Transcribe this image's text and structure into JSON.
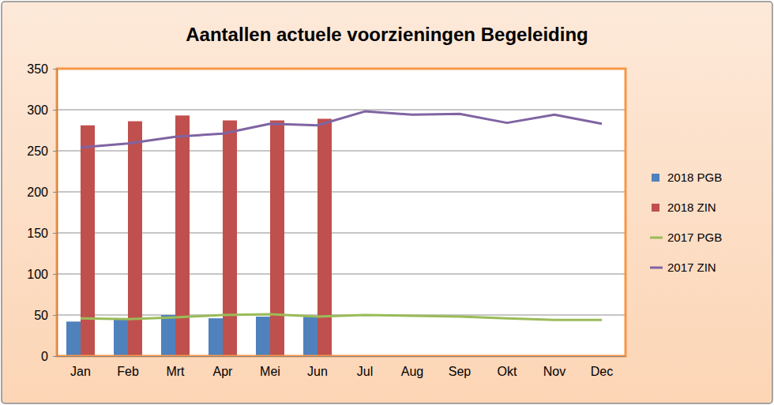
{
  "chart_data": {
    "type": "bar",
    "title": "Aantallen actuele voorzieningen Begeleiding",
    "categories": [
      "Jan",
      "Feb",
      "Mrt",
      "Apr",
      "Mei",
      "Jun",
      "Jul",
      "Aug",
      "Sep",
      "Okt",
      "Nov",
      "Dec"
    ],
    "series": [
      {
        "name": "2018 PGB",
        "type": "bar",
        "color": "#4f81bd",
        "values": [
          42,
          46,
          50,
          46,
          48,
          48,
          null,
          null,
          null,
          null,
          null,
          null
        ]
      },
      {
        "name": "2018 ZIN",
        "type": "bar",
        "color": "#c0504d",
        "values": [
          281,
          286,
          293,
          287,
          287,
          289,
          null,
          null,
          null,
          null,
          null,
          null
        ]
      },
      {
        "name": "2017 PGB",
        "type": "line",
        "color": "#9bbb59",
        "values": [
          46,
          45,
          47,
          50,
          51,
          48,
          50,
          49,
          48,
          46,
          44,
          44
        ]
      },
      {
        "name": "2017 ZIN",
        "type": "line",
        "color": "#8064a2",
        "values": [
          254,
          259,
          267,
          271,
          283,
          281,
          298,
          294,
          295,
          284,
          294,
          283
        ]
      }
    ],
    "ylim": [
      0,
      350
    ],
    "yticks": [
      0,
      50,
      100,
      150,
      200,
      250,
      300,
      350
    ],
    "grid": true,
    "legend": "right"
  }
}
